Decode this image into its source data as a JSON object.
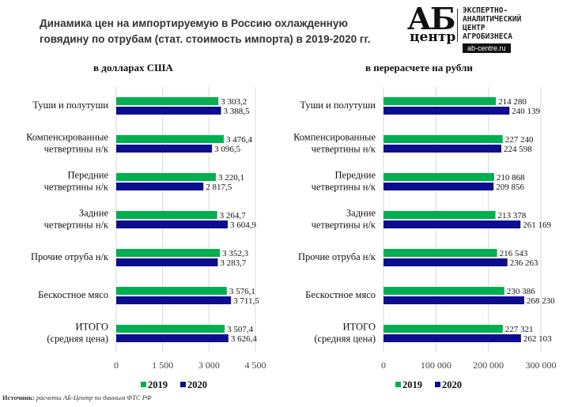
{
  "title": "Динамика цен на импортируемую в Россию охлажденную говядину  по отрубам (стат. стоимость импорта) в 2019-2020 гг.",
  "logo": {
    "big": "АБ",
    "small": "центр",
    "lines": [
      "ЭКСПЕРТНО-",
      "АНАЛИТИЧЕСКИЙ",
      "ЦЕНТР",
      "АГРОБИЗНЕСА"
    ],
    "url": "ab-centre.ru"
  },
  "source": {
    "label": "Источник:",
    "text": "расчеты АБ-Центр  по данным ФТС РФ"
  },
  "colors": {
    "2019": "#00b050",
    "2020": "#0d0d8f"
  },
  "chart_data": [
    {
      "type": "bar",
      "orientation": "horizontal",
      "title": "в долларах США",
      "categories": [
        "Туши и полутуши",
        "Компенсированные|четвертины н/к",
        "Передние|четвертины н/к",
        "Задние|четвертины н/к",
        "Прочие отруба н/к",
        "Бескостное мясо",
        "ИТОГО|(средняя цена)"
      ],
      "series": [
        {
          "name": "2019",
          "values": [
            3303.2,
            3476.4,
            3220.1,
            3264.7,
            3352.3,
            3576.1,
            3507.4
          ],
          "labels": [
            "3 303,2",
            "3 476,4",
            "3 220,1",
            "3 264,7",
            "3 352,3",
            "3 576,1",
            "3 507,4"
          ]
        },
        {
          "name": "2020",
          "values": [
            3388.5,
            3096.5,
            2817.5,
            3604.9,
            3283.7,
            3711.5,
            3626.4
          ],
          "labels": [
            "3 388,5",
            "3 096,5",
            "2 817,5",
            "3 604,9",
            "3 283,7",
            "3 711,5",
            "3 626,4"
          ]
        }
      ],
      "xlim": [
        0,
        4500
      ],
      "ticks": [
        0,
        1500,
        3000,
        4500
      ],
      "tick_labels": [
        "0",
        "1 500",
        "3 000",
        "4 500"
      ],
      "legend": "bottom"
    },
    {
      "type": "bar",
      "orientation": "horizontal",
      "title": "в перерасчете на рубли",
      "categories": [
        "Туши и полутуши",
        "Компенсированные|четвертины н/к",
        "Передние|четвертины н/к",
        "Задние|четвертины н/к",
        "Прочие отруба н/к",
        "Бескостное мясо",
        "ИТОГО|(средняя цена)"
      ],
      "series": [
        {
          "name": "2019",
          "values": [
            214280,
            227240,
            210868,
            213378,
            216543,
            230386,
            227321
          ],
          "labels": [
            "214 280",
            "227 240",
            "210 868",
            "213 378",
            "216 543",
            "230 386",
            "227 321"
          ]
        },
        {
          "name": "2020",
          "values": [
            240139,
            224598,
            209856,
            261169,
            236263,
            268230,
            262103
          ],
          "labels": [
            "240 139",
            "224 598",
            "209 856",
            "261 169",
            "236 263",
            "268 230",
            "262 103"
          ]
        }
      ],
      "xlim": [
        0,
        300000
      ],
      "ticks": [
        0,
        100000,
        200000,
        300000
      ],
      "tick_labels": [
        "0",
        "100 000",
        "200 000",
        "300 000"
      ],
      "legend": "bottom"
    }
  ]
}
